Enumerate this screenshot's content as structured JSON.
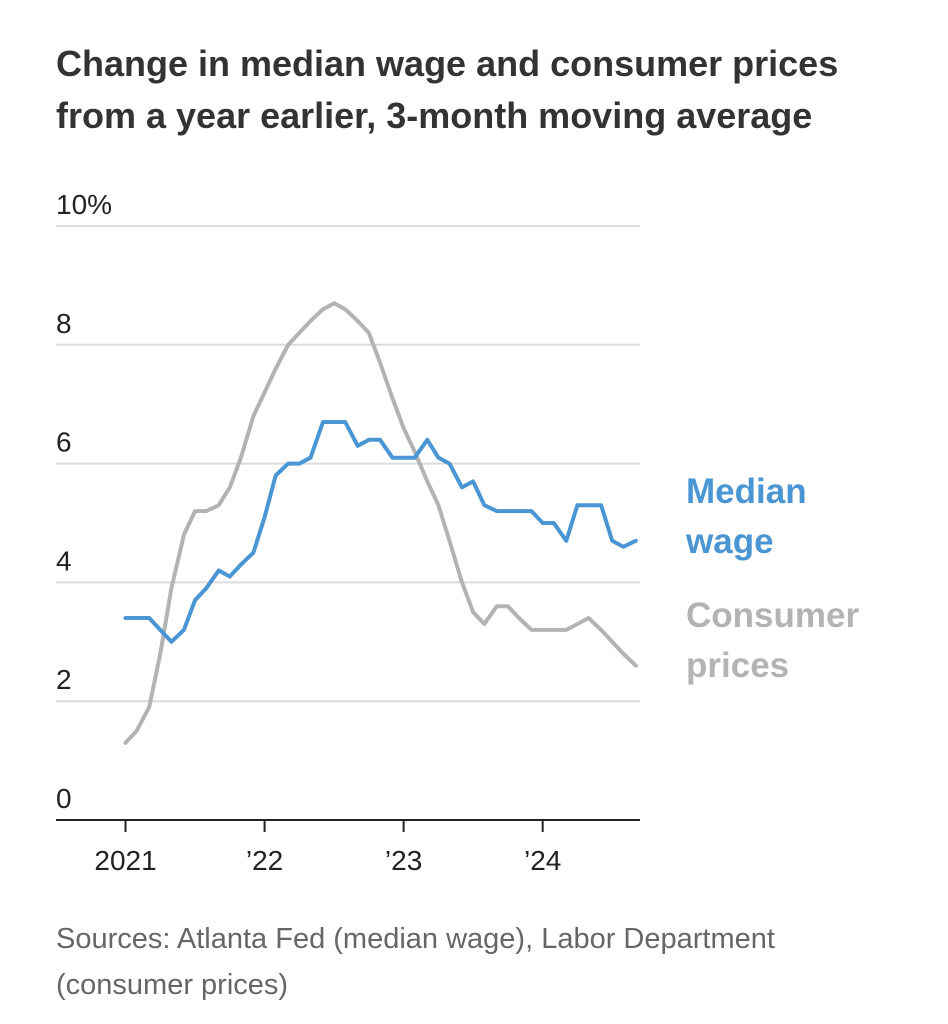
{
  "chart_data": {
    "type": "line",
    "title": "Change in median wage and consumer prices from a year earlier, 3-month moving average",
    "ylim": [
      0,
      10
    ],
    "y_tick_labels": [
      "0",
      "2",
      "4",
      "6",
      "8",
      "10%"
    ],
    "y_tick_values": [
      0,
      2,
      4,
      6,
      8,
      10
    ],
    "x_tick_labels": [
      "2021",
      "’22",
      "’23",
      "’24"
    ],
    "x_tick_values": [
      2021.0,
      2022.0,
      2023.0,
      2024.0
    ],
    "xlim": [
      2020.5,
      2024.7
    ],
    "grid": true,
    "series": [
      {
        "name": "Median wage",
        "label_lines": [
          "Median",
          "wage"
        ],
        "color": "#4a95d3",
        "x": [
          2021.0,
          2021.08,
          2021.17,
          2021.25,
          2021.33,
          2021.42,
          2021.5,
          2021.58,
          2021.67,
          2021.75,
          2021.83,
          2021.92,
          2022.0,
          2022.08,
          2022.17,
          2022.25,
          2022.33,
          2022.42,
          2022.5,
          2022.58,
          2022.67,
          2022.75,
          2022.83,
          2022.92,
          2023.0,
          2023.08,
          2023.17,
          2023.25,
          2023.33,
          2023.42,
          2023.5,
          2023.58,
          2023.67,
          2023.75,
          2023.83,
          2023.92,
          2024.0,
          2024.08,
          2024.17,
          2024.25,
          2024.33,
          2024.42,
          2024.5,
          2024.58,
          2024.67
        ],
        "values": [
          3.4,
          3.4,
          3.4,
          3.2,
          3.0,
          3.2,
          3.7,
          3.9,
          4.2,
          4.1,
          4.3,
          4.5,
          5.1,
          5.8,
          6.0,
          6.0,
          6.1,
          6.7,
          6.7,
          6.7,
          6.3,
          6.4,
          6.4,
          6.1,
          6.1,
          6.1,
          6.4,
          6.1,
          6.0,
          5.6,
          5.7,
          5.3,
          5.2,
          5.2,
          5.2,
          5.2,
          5.0,
          5.0,
          4.7,
          5.3,
          5.3,
          5.3,
          4.7,
          4.6,
          4.7
        ]
      },
      {
        "name": "Consumer prices",
        "label_lines": [
          "Consumer",
          "prices"
        ],
        "color": "#b3b3b3",
        "x": [
          2021.0,
          2021.08,
          2021.17,
          2021.25,
          2021.33,
          2021.42,
          2021.5,
          2021.58,
          2021.67,
          2021.75,
          2021.83,
          2021.92,
          2022.0,
          2022.08,
          2022.17,
          2022.25,
          2022.33,
          2022.42,
          2022.5,
          2022.58,
          2022.67,
          2022.75,
          2022.83,
          2022.92,
          2023.0,
          2023.08,
          2023.17,
          2023.25,
          2023.33,
          2023.42,
          2023.5,
          2023.58,
          2023.67,
          2023.75,
          2023.83,
          2023.92,
          2024.0,
          2024.08,
          2024.17,
          2024.25,
          2024.33,
          2024.42,
          2024.5,
          2024.58,
          2024.67
        ],
        "values": [
          1.3,
          1.5,
          1.9,
          2.8,
          3.9,
          4.8,
          5.2,
          5.2,
          5.3,
          5.6,
          6.1,
          6.8,
          7.2,
          7.6,
          8.0,
          8.2,
          8.4,
          8.6,
          8.7,
          8.6,
          8.4,
          8.2,
          7.7,
          7.1,
          6.6,
          6.2,
          5.7,
          5.3,
          4.7,
          4.0,
          3.5,
          3.3,
          3.6,
          3.6,
          3.4,
          3.2,
          3.2,
          3.2,
          3.2,
          3.3,
          3.4,
          3.2,
          3.0,
          2.8,
          2.6
        ]
      }
    ]
  },
  "source": "Sources: Atlanta Fed (median wage), Labor Department (consumer prices)"
}
